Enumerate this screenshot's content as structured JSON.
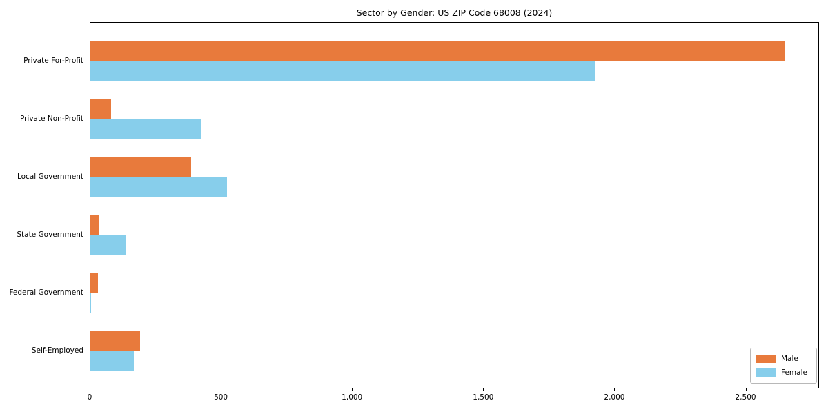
{
  "chart_data": {
    "type": "bar",
    "orientation": "horizontal",
    "title": "Sector by Gender: US ZIP Code 68008 (2024)",
    "categories": [
      "Private For-Profit",
      "Private Non-Profit",
      "Local Government",
      "State Government",
      "Federal Government",
      "Self-Employed"
    ],
    "series": [
      {
        "name": "Male",
        "color": "#E87A3C",
        "values": [
          2645,
          80,
          385,
          35,
          30,
          190
        ]
      },
      {
        "name": "Female",
        "color": "#87CEEB",
        "values": [
          1925,
          420,
          520,
          135,
          3,
          165
        ]
      }
    ],
    "xlim": [
      0,
      2780
    ],
    "xticks": [
      0,
      500,
      1000,
      1500,
      2000,
      2500
    ],
    "xtick_labels": [
      "0",
      "500",
      "1,000",
      "1,500",
      "2,000",
      "2,500"
    ],
    "ylabel": "",
    "xlabel": "",
    "grid": false,
    "legend_position": "lower right"
  }
}
